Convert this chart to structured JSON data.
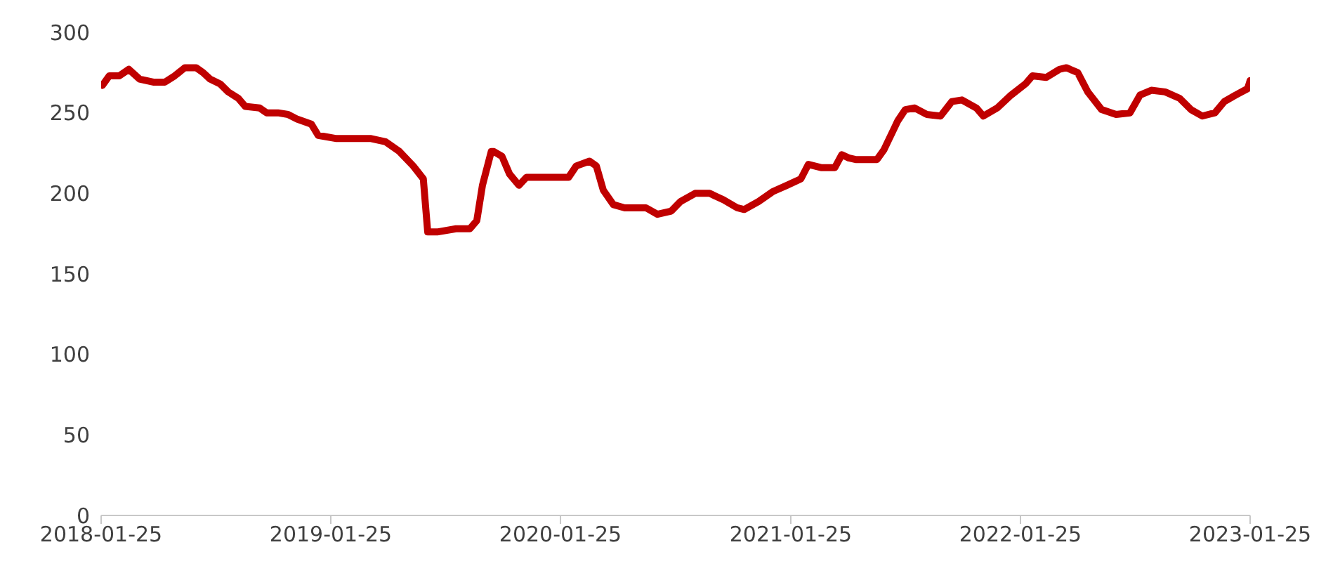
{
  "chart_data": {
    "type": "line",
    "x": [
      "2018-01-27",
      "2018-02-07",
      "2018-02-23",
      "2018-03-10",
      "2018-03-27",
      "2018-04-19",
      "2018-05-06",
      "2018-05-22",
      "2018-06-07",
      "2018-06-25",
      "2018-07-06",
      "2018-07-17",
      "2018-08-02",
      "2018-08-15",
      "2018-08-31",
      "2018-09-11",
      "2018-10-04",
      "2018-10-15",
      "2018-11-02",
      "2018-11-18",
      "2018-12-03",
      "2018-12-25",
      "2019-01-05",
      "2019-02-03",
      "2019-03-30",
      "2019-04-22",
      "2019-05-14",
      "2019-06-05",
      "2019-06-21",
      "2019-06-28",
      "2019-07-13",
      "2019-08-12",
      "2019-09-03",
      "2019-09-14",
      "2019-09-23",
      "2019-10-07",
      "2019-10-11",
      "2019-10-24",
      "2019-11-05",
      "2019-11-20",
      "2019-12-02",
      "2020-02-07",
      "2020-02-19",
      "2020-03-11",
      "2020-03-22",
      "2020-04-02",
      "2020-04-18",
      "2020-05-06",
      "2020-06-09",
      "2020-06-27",
      "2020-07-19",
      "2020-08-03",
      "2020-08-26",
      "2020-09-18",
      "2020-10-10",
      "2020-11-01",
      "2020-11-12",
      "2020-12-05",
      "2020-12-27",
      "2021-01-19",
      "2021-02-10",
      "2021-02-22",
      "2021-03-14",
      "2021-04-05",
      "2021-04-16",
      "2021-04-27",
      "2021-05-08",
      "2021-06-11",
      "2021-06-22",
      "2021-07-14",
      "2021-07-26",
      "2021-08-10",
      "2021-08-29",
      "2021-09-20",
      "2021-10-08",
      "2021-10-24",
      "2021-11-16",
      "2021-11-27",
      "2021-12-19",
      "2022-01-10",
      "2022-02-02",
      "2022-02-13",
      "2022-03-07",
      "2022-03-28",
      "2022-04-08",
      "2022-04-26",
      "2022-05-12",
      "2022-06-03",
      "2022-06-26",
      "2022-07-18",
      "2022-08-03",
      "2022-08-21",
      "2022-09-12",
      "2022-10-05",
      "2022-10-23",
      "2022-11-10",
      "2022-11-30",
      "2022-12-15",
      "2023-01-02",
      "2023-01-21",
      "2023-01-25"
    ],
    "series": [
      {
        "color": "#c00000",
        "values": [
          267,
          273,
          273,
          277,
          271,
          269,
          269,
          273,
          278,
          278,
          275,
          271,
          268,
          263,
          259,
          254,
          253,
          250,
          250,
          249,
          246,
          243,
          236,
          234,
          234,
          232,
          226,
          217,
          209,
          176,
          176,
          178,
          178,
          183,
          205,
          226,
          226,
          223,
          212,
          205,
          210,
          210,
          217,
          220,
          217,
          202,
          193,
          191,
          191,
          187,
          189,
          195,
          200,
          200,
          196,
          191,
          190,
          195,
          201,
          205,
          209,
          218,
          216,
          216,
          224,
          222,
          221,
          221,
          227,
          245,
          252,
          253,
          249,
          248,
          257,
          258,
          253,
          248,
          253,
          261,
          268,
          273,
          272,
          277,
          278,
          275,
          263,
          252,
          249,
          250,
          261,
          264,
          263,
          259,
          252,
          248,
          250,
          257,
          261,
          265,
          270
        ]
      }
    ],
    "xlim": [
      "2018-01-25",
      "2023-01-25"
    ],
    "xticks": [
      "2018-01-25",
      "2019-01-25",
      "2020-01-25",
      "2021-01-25",
      "2022-01-25",
      "2023-01-25"
    ],
    "ylim": [
      0,
      300
    ],
    "yticks": [
      0,
      50,
      100,
      150,
      200,
      250,
      300
    ],
    "grid": false,
    "legend": false,
    "marker": "none",
    "line_style": "solid"
  }
}
